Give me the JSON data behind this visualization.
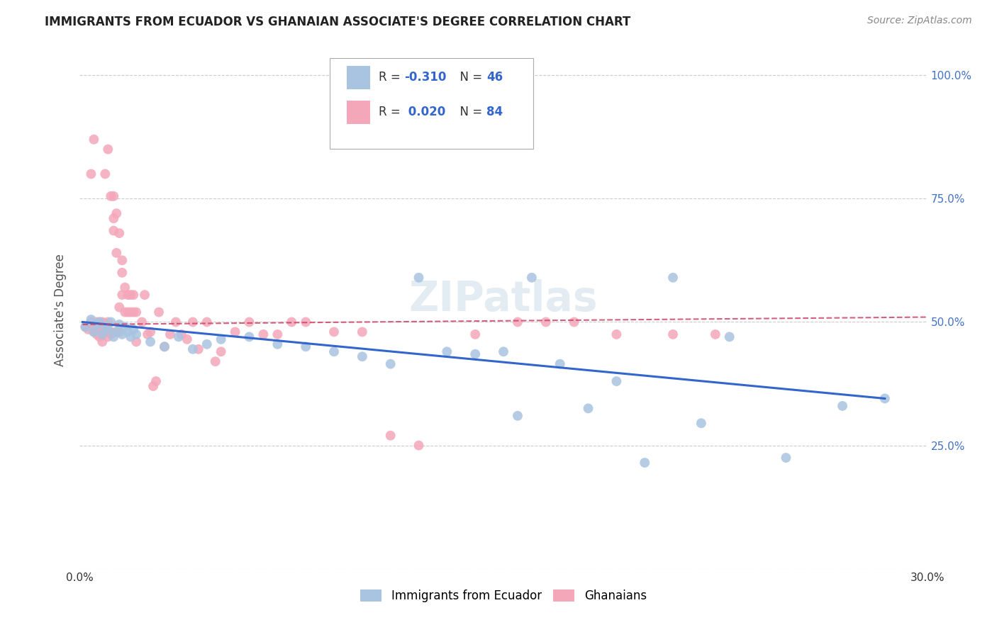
{
  "title": "IMMIGRANTS FROM ECUADOR VS GHANAIAN ASSOCIATE'S DEGREE CORRELATION CHART",
  "source": "Source: ZipAtlas.com",
  "ylabel": "Associate's Degree",
  "xlim": [
    0.0,
    0.3
  ],
  "ylim": [
    0.0,
    1.05
  ],
  "ytick_labels": [
    "",
    "25.0%",
    "50.0%",
    "75.0%",
    "100.0%"
  ],
  "ytick_values": [
    0.0,
    0.25,
    0.5,
    0.75,
    1.0
  ],
  "xtick_labels": [
    "0.0%",
    "",
    "",
    "",
    "",
    "",
    "30.0%"
  ],
  "xtick_values": [
    0.0,
    0.05,
    0.1,
    0.15,
    0.2,
    0.25,
    0.3
  ],
  "legend_blue_label": "Immigrants from Ecuador",
  "legend_pink_label": "Ghanaians",
  "blue_R": -0.31,
  "blue_N": 46,
  "pink_R": 0.02,
  "pink_N": 84,
  "blue_color": "#a8c4e0",
  "pink_color": "#f4a7b9",
  "blue_line_color": "#3366cc",
  "pink_line_color": "#cc4466",
  "tick_label_color_right": "#4472c4",
  "watermark": "ZIPatlas",
  "blue_scatter_x": [
    0.002,
    0.004,
    0.005,
    0.006,
    0.007,
    0.008,
    0.009,
    0.01,
    0.011,
    0.012,
    0.013,
    0.014,
    0.015,
    0.016,
    0.017,
    0.018,
    0.019,
    0.02,
    0.025,
    0.03,
    0.035,
    0.04,
    0.045,
    0.05,
    0.06,
    0.07,
    0.08,
    0.09,
    0.1,
    0.11,
    0.12,
    0.13,
    0.14,
    0.15,
    0.155,
    0.16,
    0.17,
    0.18,
    0.19,
    0.2,
    0.21,
    0.22,
    0.23,
    0.25,
    0.27,
    0.285
  ],
  "blue_scatter_y": [
    0.49,
    0.505,
    0.48,
    0.495,
    0.5,
    0.475,
    0.49,
    0.485,
    0.5,
    0.47,
    0.48,
    0.495,
    0.475,
    0.49,
    0.48,
    0.47,
    0.485,
    0.475,
    0.46,
    0.45,
    0.47,
    0.445,
    0.455,
    0.465,
    0.47,
    0.455,
    0.45,
    0.44,
    0.43,
    0.415,
    0.59,
    0.44,
    0.435,
    0.44,
    0.31,
    0.59,
    0.415,
    0.325,
    0.38,
    0.215,
    0.59,
    0.295,
    0.47,
    0.225,
    0.33,
    0.345
  ],
  "pink_scatter_x": [
    0.002,
    0.003,
    0.004,
    0.004,
    0.005,
    0.005,
    0.005,
    0.006,
    0.006,
    0.006,
    0.007,
    0.007,
    0.007,
    0.007,
    0.008,
    0.008,
    0.008,
    0.008,
    0.009,
    0.009,
    0.009,
    0.01,
    0.01,
    0.01,
    0.01,
    0.011,
    0.011,
    0.011,
    0.012,
    0.012,
    0.012,
    0.013,
    0.013,
    0.013,
    0.014,
    0.014,
    0.014,
    0.015,
    0.015,
    0.015,
    0.016,
    0.016,
    0.017,
    0.017,
    0.018,
    0.018,
    0.019,
    0.019,
    0.02,
    0.02,
    0.022,
    0.023,
    0.024,
    0.025,
    0.026,
    0.027,
    0.028,
    0.03,
    0.032,
    0.034,
    0.036,
    0.038,
    0.04,
    0.042,
    0.045,
    0.048,
    0.05,
    0.055,
    0.06,
    0.065,
    0.07,
    0.075,
    0.08,
    0.09,
    0.1,
    0.11,
    0.12,
    0.14,
    0.155,
    0.165,
    0.175,
    0.19,
    0.21,
    0.225
  ],
  "pink_scatter_y": [
    0.49,
    0.485,
    0.5,
    0.8,
    0.87,
    0.48,
    0.49,
    0.475,
    0.48,
    0.5,
    0.47,
    0.48,
    0.495,
    0.5,
    0.46,
    0.48,
    0.5,
    0.49,
    0.8,
    0.48,
    0.49,
    0.47,
    0.5,
    0.85,
    0.48,
    0.475,
    0.48,
    0.755,
    0.685,
    0.755,
    0.71,
    0.72,
    0.64,
    0.48,
    0.68,
    0.48,
    0.53,
    0.6,
    0.625,
    0.555,
    0.52,
    0.57,
    0.52,
    0.555,
    0.52,
    0.555,
    0.52,
    0.555,
    0.46,
    0.52,
    0.5,
    0.555,
    0.475,
    0.48,
    0.37,
    0.38,
    0.52,
    0.45,
    0.475,
    0.5,
    0.475,
    0.465,
    0.5,
    0.445,
    0.5,
    0.42,
    0.44,
    0.48,
    0.5,
    0.475,
    0.475,
    0.5,
    0.5,
    0.48,
    0.48,
    0.27,
    0.25,
    0.475,
    0.5,
    0.5,
    0.5,
    0.475,
    0.475,
    0.475
  ],
  "blue_line_x": [
    0.001,
    0.285
  ],
  "blue_line_y": [
    0.5,
    0.345
  ],
  "pink_line_x": [
    0.001,
    0.3
  ],
  "pink_line_y": [
    0.495,
    0.51
  ]
}
